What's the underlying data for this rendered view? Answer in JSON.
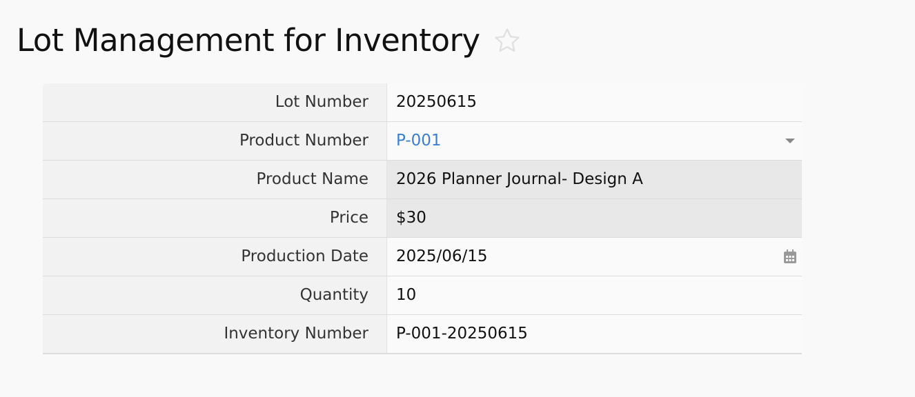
{
  "page": {
    "title": "Lot Management for Inventory",
    "favorite_icon": "star-icon"
  },
  "fields": [
    {
      "label": "Lot Number",
      "value": "20250615"
    },
    {
      "label": "Product Number",
      "value": "P-001",
      "icon": "chevron-down-icon"
    },
    {
      "label": "Product Name",
      "value": "2026 Planner Journal- Design A"
    },
    {
      "label": "Price",
      "value": "$30"
    },
    {
      "label": "Production Date",
      "value": "2025/06/15",
      "icon": "calendar-icon"
    },
    {
      "label": "Quantity",
      "value": "10"
    },
    {
      "label": "Inventory Number",
      "value": "P-001-20250615"
    }
  ],
  "colors": {
    "link": "#3a7fd0",
    "readonly_bg": "#e8e8e8",
    "label_bg": "#f2f2f2"
  }
}
